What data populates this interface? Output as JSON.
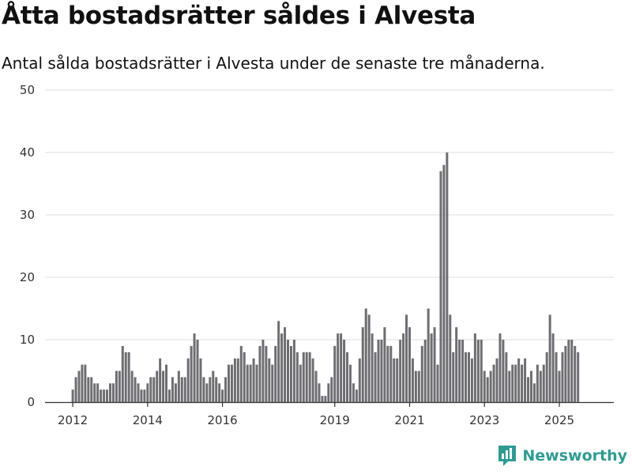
{
  "title": "Åtta bostadsrätter såldes i Alvesta",
  "subtitle": "Antal sålda bostadsrätter i Alvesta under de senaste tre månaderna.",
  "brand": {
    "name": "Newsworthy",
    "icon": "chart-bubble-icon",
    "color": "#2e9c92"
  },
  "colors": {
    "bar": "#6e6d72",
    "highlight": "#2e9c92",
    "grid": "#dddddd"
  },
  "chart_data": {
    "type": "bar",
    "title": "",
    "xlabel": "",
    "ylabel": "",
    "ylim": [
      0,
      50
    ],
    "yticks": [
      "0",
      "10",
      "20",
      "30",
      "40",
      "50"
    ],
    "xticks": [
      "2012",
      "2014",
      "2016",
      "2019",
      "2021",
      "2023",
      "2025"
    ],
    "start": "2012-01",
    "values": [
      2,
      4,
      5,
      6,
      6,
      4,
      4,
      3,
      3,
      2,
      2,
      2,
      3,
      3,
      5,
      5,
      9,
      8,
      8,
      5,
      4,
      3,
      2,
      2,
      3,
      4,
      4,
      5,
      7,
      5,
      6,
      2,
      4,
      3,
      5,
      4,
      4,
      7,
      9,
      11,
      10,
      7,
      4,
      3,
      4,
      5,
      4,
      3,
      2,
      4,
      6,
      6,
      7,
      7,
      9,
      8,
      6,
      6,
      7,
      6,
      9,
      10,
      9,
      7,
      6,
      9,
      13,
      11,
      12,
      10,
      9,
      10,
      8,
      6,
      8,
      8,
      8,
      7,
      5,
      3,
      1,
      1,
      3,
      4,
      9,
      11,
      11,
      10,
      8,
      6,
      3,
      2,
      7,
      12,
      15,
      14,
      11,
      8,
      10,
      10,
      12,
      9,
      9,
      7,
      7,
      10,
      11,
      14,
      12,
      7,
      5,
      5,
      9,
      10,
      15,
      11,
      12,
      6,
      37,
      38,
      40,
      14,
      8,
      12,
      10,
      10,
      8,
      8,
      7,
      11,
      10,
      10,
      5,
      4,
      5,
      6,
      7,
      11,
      10,
      8,
      5,
      6,
      6,
      7,
      6,
      7,
      4,
      5,
      3,
      6,
      5,
      6,
      8,
      14,
      11,
      8,
      5,
      8,
      9,
      10,
      10,
      9,
      8
    ],
    "highlight_index": 166,
    "highlight_label": "8"
  }
}
